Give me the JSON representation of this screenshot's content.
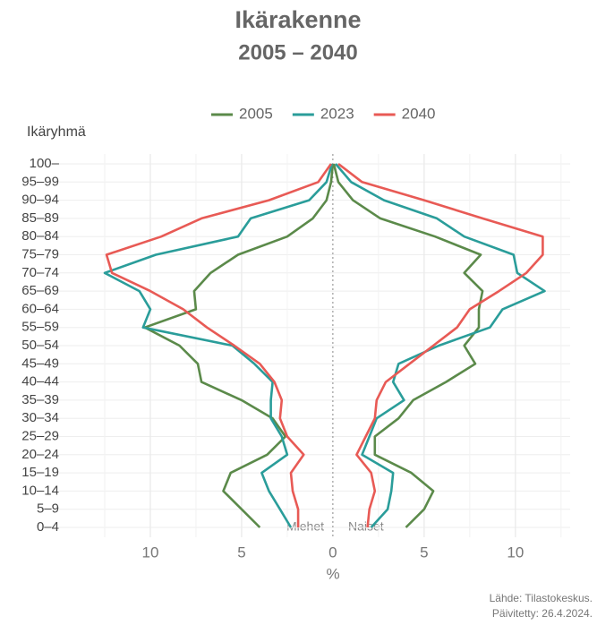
{
  "chart_data": {
    "type": "pyramid-line",
    "title": "Ikärakenne",
    "subtitle": "2005 – 2040",
    "y_label": "Ikäryhmä",
    "x_label": "%",
    "annotations": [
      "Miehet",
      "Naiset"
    ],
    "source": [
      "Lähde: Tilastokeskus.",
      "Päivitetty: 26.4.2024."
    ],
    "categories": [
      "0–4",
      "5–9",
      "10–14",
      "15–19",
      "20–24",
      "25–29",
      "30–34",
      "35–39",
      "40–44",
      "45–49",
      "50–54",
      "55–59",
      "60–64",
      "65–69",
      "70–74",
      "75–79",
      "80–84",
      "85–89",
      "90–94",
      "95–99",
      "100–"
    ],
    "series": [
      {
        "name": "2005",
        "color": "#5b8a4a",
        "men": [
          -4.0,
          -5.0,
          -6.0,
          -5.6,
          -3.6,
          -2.6,
          -3.3,
          -5.0,
          -7.2,
          -7.4,
          -8.4,
          -10.3,
          -7.5,
          -7.6,
          -6.7,
          -5.2,
          -2.5,
          -1.1,
          -0.35,
          -0.1,
          0
        ],
        "women": [
          4.0,
          5.0,
          5.5,
          4.3,
          2.3,
          2.3,
          3.6,
          4.4,
          6.2,
          7.8,
          7.2,
          8.0,
          8.0,
          8.2,
          7.2,
          8.1,
          5.6,
          2.6,
          1.1,
          0.3,
          0.05
        ]
      },
      {
        "name": "2023",
        "color": "#2a9d9a",
        "men": [
          -2.3,
          -2.9,
          -3.5,
          -3.9,
          -2.5,
          -2.8,
          -3.4,
          -3.4,
          -3.3,
          -4.3,
          -5.5,
          -10.4,
          -10.0,
          -10.6,
          -12.5,
          -9.7,
          -5.2,
          -4.5,
          -1.3,
          -0.35,
          -0.05
        ],
        "women": [
          2.1,
          3.0,
          3.2,
          3.3,
          1.6,
          2.0,
          2.4,
          3.9,
          3.3,
          3.6,
          5.8,
          8.6,
          9.3,
          11.6,
          10.1,
          9.9,
          7.2,
          5.7,
          2.8,
          1.0,
          0.15
        ]
      },
      {
        "name": "2040",
        "color": "#e85a55",
        "men": [
          -1.9,
          -1.9,
          -2.2,
          -2.3,
          -1.6,
          -2.5,
          -2.9,
          -2.8,
          -3.2,
          -4.0,
          -5.4,
          -6.9,
          -8.2,
          -10.0,
          -12.1,
          -12.4,
          -9.4,
          -7.2,
          -3.5,
          -0.8,
          -0.1
        ],
        "women": [
          1.9,
          2.0,
          2.3,
          2.1,
          1.3,
          1.8,
          2.3,
          2.4,
          2.9,
          4.2,
          5.5,
          6.8,
          7.5,
          9.1,
          10.6,
          11.5,
          11.5,
          8.2,
          5.0,
          1.6,
          0.3
        ]
      }
    ],
    "xlim": [
      -15,
      13
    ],
    "xticks": [
      {
        "value": -10,
        "label": "10"
      },
      {
        "value": -5,
        "label": "5"
      },
      0,
      5,
      10
    ],
    "xminor": [
      -12.5,
      -7.5,
      -2.5,
      2.5,
      7.5,
      12.5
    ],
    "grid": true
  }
}
